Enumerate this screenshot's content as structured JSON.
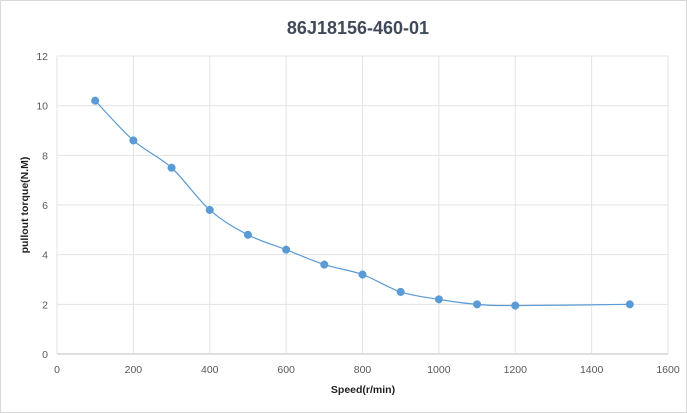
{
  "chart_data": {
    "type": "line",
    "title": "86J18156-460-01",
    "xlabel": "Speed(r/min)",
    "ylabel": "pullout torque(N.M)",
    "xlim": [
      0,
      1600
    ],
    "ylim": [
      0,
      12
    ],
    "xticks": [
      0,
      200,
      400,
      600,
      800,
      1000,
      1200,
      1400,
      1600
    ],
    "yticks": [
      0,
      2,
      4,
      6,
      8,
      10,
      12
    ],
    "grid": true,
    "legend": "none",
    "series": [
      {
        "color": "#5b9bd5",
        "x": [
          100,
          200,
          300,
          400,
          500,
          600,
          700,
          800,
          900,
          1000,
          1100,
          1200,
          1500
        ],
        "y": [
          10.2,
          8.6,
          7.5,
          5.8,
          4.8,
          4.2,
          3.6,
          3.2,
          2.5,
          2.2,
          2.0,
          1.95,
          2.0
        ]
      }
    ]
  }
}
